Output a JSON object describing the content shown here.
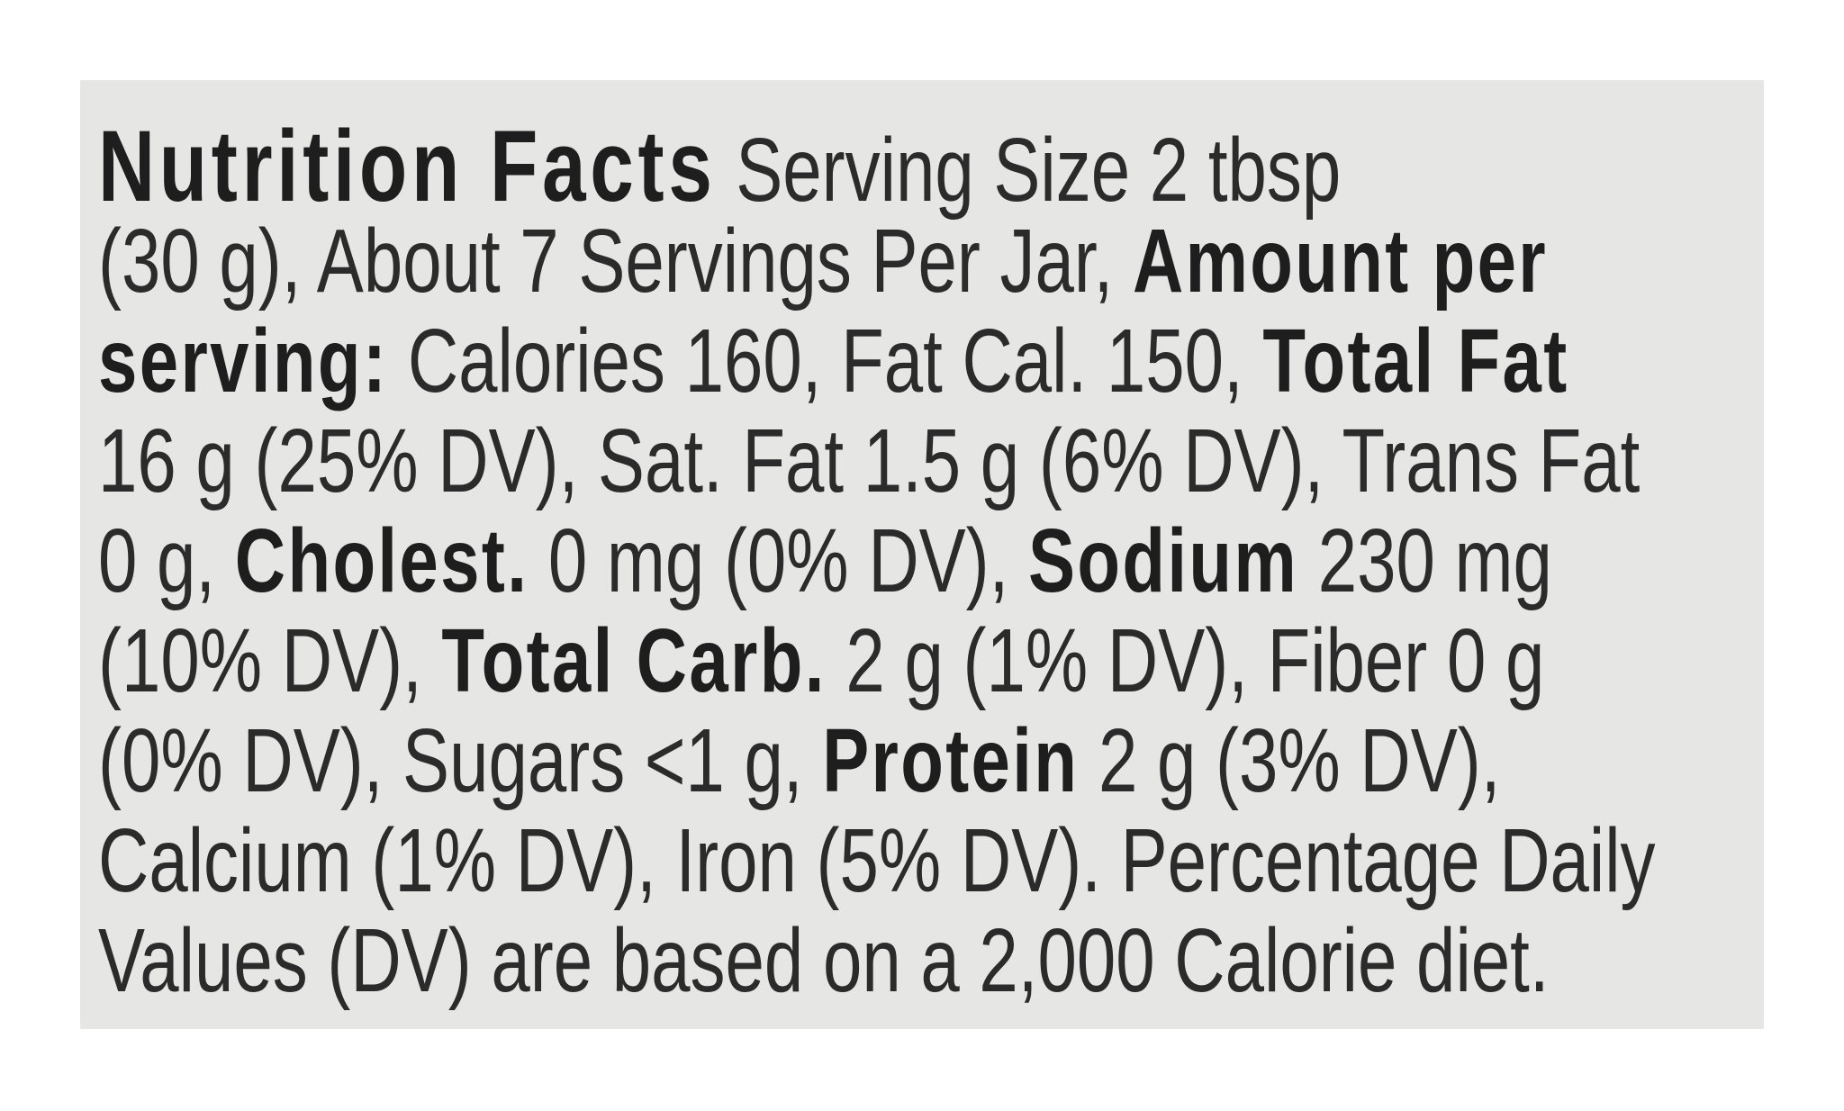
{
  "label": {
    "lines": [
      [
        "Nutrition Facts",
        " Serving Size 2 tbsp"
      ],
      [
        "(30 g), About 7 Servings Per Jar, ",
        "Amount per"
      ],
      [
        "serving:",
        " Calories 160, Fat Cal. 150, ",
        "Total Fat"
      ],
      [
        "16 g (25% DV), Sat. Fat 1.5 g (6% DV), Trans Fat"
      ],
      [
        "0 g, ",
        "Cholest.",
        " 0 mg (0% DV), ",
        "Sodium",
        " 230 mg"
      ],
      [
        "(10% DV), ",
        "Total Carb.",
        " 2 g (1% DV), Fiber 0 g"
      ],
      [
        "(0% DV), Sugars <1 g, ",
        "Protein",
        " 2 g (3% DV),"
      ],
      [
        "Calcium (1% DV), Iron (5% DV). Percentage Daily"
      ],
      [
        "Values (DV) are based on a 2,000 Calorie diet."
      ]
    ]
  }
}
